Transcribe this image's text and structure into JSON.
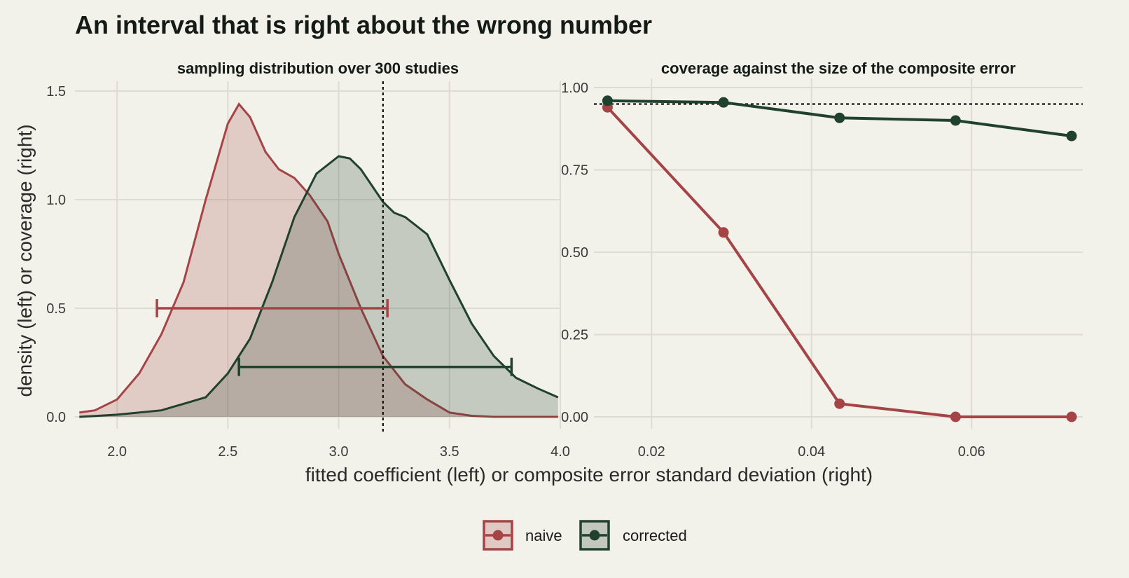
{
  "title": "An interval that is right about the wrong number",
  "xlabel": "fitted coefficient (left) or composite error standard deviation (right)",
  "ylabel": "density (left) or coverage (right)",
  "colors": {
    "naive_line": "#a54446",
    "naive_fill": "#e0c8c3",
    "corrected_line": "#21412f",
    "corrected_fill": "#c3c8bd"
  },
  "legend": {
    "position": "bottom",
    "items": [
      "naive",
      "corrected"
    ]
  },
  "chart_data": [
    {
      "type": "area",
      "title": "sampling distribution over 300 studies",
      "xlim": [
        1.81,
        4.0
      ],
      "ylim": [
        0,
        1.5
      ],
      "x_ticks": [
        2.0,
        2.5,
        3.0,
        3.5,
        4.0
      ],
      "x_tick_labels": [
        "2.0",
        "2.5",
        "3.0",
        "3.5",
        "4.0"
      ],
      "y_ticks": [
        0.0,
        0.5,
        1.0,
        1.5
      ],
      "y_tick_labels": [
        "0.0",
        "0.5",
        "1.0",
        "1.5"
      ],
      "reference_line_x": 3.2,
      "series": [
        {
          "name": "naive",
          "density": [
            [
              1.83,
              0.02
            ],
            [
              1.9,
              0.03
            ],
            [
              2.0,
              0.08
            ],
            [
              2.1,
              0.2
            ],
            [
              2.2,
              0.38
            ],
            [
              2.3,
              0.62
            ],
            [
              2.4,
              1.0
            ],
            [
              2.5,
              1.35
            ],
            [
              2.55,
              1.44
            ],
            [
              2.6,
              1.38
            ],
            [
              2.67,
              1.22
            ],
            [
              2.73,
              1.14
            ],
            [
              2.8,
              1.1
            ],
            [
              2.87,
              1.02
            ],
            [
              2.95,
              0.9
            ],
            [
              3.0,
              0.75
            ],
            [
              3.1,
              0.5
            ],
            [
              3.2,
              0.28
            ],
            [
              3.3,
              0.15
            ],
            [
              3.4,
              0.08
            ],
            [
              3.5,
              0.02
            ],
            [
              3.6,
              0.005
            ],
            [
              3.7,
              0.0
            ],
            [
              3.99,
              0.0
            ]
          ],
          "interval": [
            2.18,
            3.22
          ],
          "interval_y": 0.5
        },
        {
          "name": "corrected",
          "density": [
            [
              1.83,
              0.0
            ],
            [
              2.0,
              0.01
            ],
            [
              2.2,
              0.03
            ],
            [
              2.4,
              0.09
            ],
            [
              2.5,
              0.2
            ],
            [
              2.6,
              0.36
            ],
            [
              2.7,
              0.62
            ],
            [
              2.8,
              0.92
            ],
            [
              2.9,
              1.12
            ],
            [
              3.0,
              1.2
            ],
            [
              3.05,
              1.19
            ],
            [
              3.1,
              1.14
            ],
            [
              3.2,
              0.99
            ],
            [
              3.25,
              0.94
            ],
            [
              3.3,
              0.92
            ],
            [
              3.4,
              0.84
            ],
            [
              3.5,
              0.63
            ],
            [
              3.6,
              0.43
            ],
            [
              3.7,
              0.28
            ],
            [
              3.8,
              0.18
            ],
            [
              3.9,
              0.13
            ],
            [
              3.99,
              0.09
            ]
          ],
          "interval": [
            2.55,
            3.78
          ],
          "interval_y": 0.23
        }
      ]
    },
    {
      "type": "line",
      "title": "coverage against the size of the composite error",
      "xlim": [
        0.0128,
        0.0739
      ],
      "ylim": [
        -0.03,
        1.0
      ],
      "x_ticks": [
        0.02,
        0.04,
        0.06
      ],
      "x_tick_labels": [
        "0.02",
        "0.04",
        "0.06"
      ],
      "y_ticks": [
        0.0,
        0.25,
        0.5,
        0.75,
        1.0
      ],
      "y_tick_labels": [
        "0.00",
        "0.25",
        "0.50",
        "0.75",
        "1.00"
      ],
      "reference_line_y": 0.95,
      "x": [
        0.0145,
        0.029,
        0.0435,
        0.058,
        0.0725
      ],
      "series": [
        {
          "name": "naive",
          "values": [
            0.94,
            0.56,
            0.04,
            0.0,
            0.0
          ]
        },
        {
          "name": "corrected",
          "values": [
            0.96,
            0.955,
            0.908,
            0.9,
            0.853
          ]
        }
      ]
    }
  ]
}
